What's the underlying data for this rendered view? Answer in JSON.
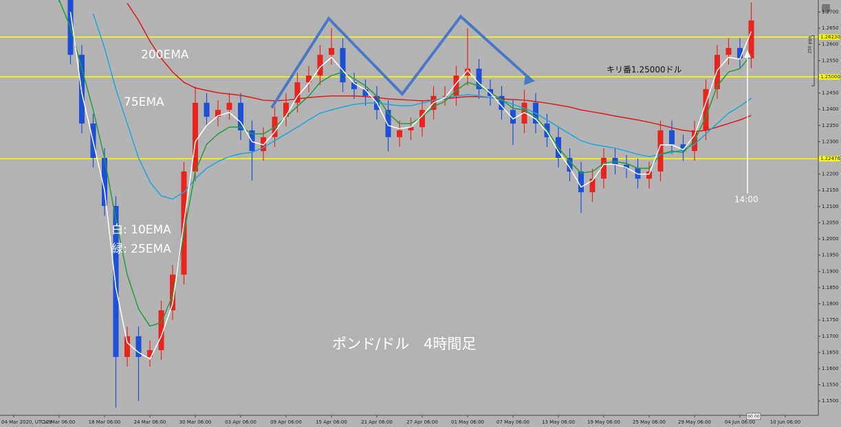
{
  "chart_data": {
    "type": "candlestick",
    "title": "ポンド/ドル　4時間足",
    "annotations": {
      "ema200": "200EMA",
      "ema75": "75EMA",
      "ema10": "白: 10EMA",
      "ema25": "緑: 25EMA",
      "round": "キリ番1.25000ドル",
      "time": "14:00",
      "pips": "250 pips",
      "cursor": "00:00"
    },
    "categories": [
      "04 Mar 2020, UTC+9",
      null,
      null,
      null,
      "12 Mar 06:00",
      null,
      null,
      null,
      "18 Mar 06:00",
      null,
      null,
      null,
      "24 Mar 06:00",
      null,
      null,
      null,
      "30 Mar 06:00",
      null,
      null,
      null,
      "03 Apr 06:00",
      null,
      null,
      null,
      "09 Apr 06:00",
      null,
      null,
      null,
      "15 Apr 06:00",
      null,
      null,
      null,
      "21 Apr 06:00",
      null,
      null,
      null,
      "27 Apr 06:00",
      null,
      null,
      null,
      "01 May 06:00",
      null,
      null,
      null,
      "07 May 06:00",
      null,
      null,
      null,
      "13 May 06:00",
      null,
      null,
      null,
      "19 May 06:00",
      null,
      null,
      null,
      "25 May 06:00",
      null,
      null,
      null,
      "29 May 06:00",
      null,
      null,
      null,
      "04 Jun 06:00",
      null,
      null,
      null,
      "10 Jun 06:00",
      null,
      null,
      null
    ],
    "open": [
      null,
      null,
      null,
      null,
      1.29,
      1.276,
      1.2568,
      1.2356,
      1.225,
      1.2102,
      1.1636,
      1.17,
      1.1636,
      1.1657,
      1.178,
      1.189,
      1.2208,
      1.242,
      1.2377,
      1.2398,
      1.242,
      1.2335,
      1.2271,
      1.2314,
      1.2377,
      1.242,
      1.2483,
      1.2504,
      1.2568,
      1.2589,
      1.2483,
      1.2462,
      1.2441,
      1.2398,
      1.2314,
      1.2335,
      1.2345,
      1.2398,
      1.2441,
      1.2441,
      1.2504,
      1.2525,
      1.2462,
      1.2441,
      1.2398,
      1.2356,
      1.242,
      1.2356,
      1.2314,
      1.225,
      1.2208,
      1.2144,
      1.2186,
      1.225,
      1.2229,
      1.2218,
      1.2186,
      1.2208,
      1.2335,
      1.2292,
      1.2271,
      1.2335,
      1.2462,
      1.2568,
      1.2589,
      1.2557,
      null,
      null,
      null,
      null,
      null,
      null
    ],
    "high": [
      null,
      null,
      null,
      null,
      1.293,
      1.279,
      1.2598,
      1.2386,
      1.228,
      1.2132,
      1.173,
      1.173,
      1.1687,
      1.181,
      1.192,
      1.2238,
      1.247,
      1.245,
      1.2428,
      1.245,
      1.245,
      1.2365,
      1.2344,
      1.2407,
      1.245,
      1.2513,
      1.2534,
      1.2598,
      1.265,
      1.2619,
      1.2513,
      1.2492,
      1.2471,
      1.2428,
      1.2365,
      1.2375,
      1.2428,
      1.2471,
      1.2471,
      1.2534,
      1.265,
      1.2555,
      1.2492,
      1.2471,
      1.2428,
      1.246,
      1.245,
      1.2386,
      1.2344,
      1.228,
      1.2238,
      1.2216,
      1.228,
      1.228,
      1.2259,
      1.2248,
      1.2238,
      1.2365,
      1.2365,
      1.2322,
      1.2365,
      1.2492,
      1.2598,
      1.2619,
      1.2619,
      1.273,
      null,
      null,
      null,
      null,
      null,
      null
    ],
    "low": [
      null,
      null,
      null,
      null,
      1.273,
      1.2538,
      1.2326,
      1.222,
      1.2072,
      1.148,
      1.1606,
      1.15,
      1.1606,
      1.1627,
      1.175,
      1.186,
      1.2178,
      1.2347,
      1.2347,
      1.2368,
      1.2305,
      1.218,
      1.2241,
      1.2284,
      1.2347,
      1.239,
      1.2453,
      1.2474,
      1.2538,
      1.2453,
      1.2432,
      1.2411,
      1.2368,
      1.227,
      1.2284,
      1.2305,
      1.2315,
      1.2368,
      1.2411,
      1.2411,
      1.2474,
      1.2432,
      1.2411,
      1.2368,
      1.229,
      1.2326,
      1.2326,
      1.2284,
      1.222,
      1.2178,
      1.208,
      1.2114,
      1.2156,
      1.2199,
      1.2188,
      1.2156,
      1.2156,
      1.2178,
      1.2262,
      1.2241,
      1.2241,
      1.2305,
      1.2432,
      1.2538,
      1.2527,
      1.2527,
      null,
      null,
      null,
      null,
      null,
      null
    ],
    "close": [
      null,
      null,
      null,
      null,
      1.276,
      1.2568,
      1.2356,
      1.225,
      1.2102,
      1.1636,
      1.17,
      1.1636,
      1.1657,
      1.178,
      1.189,
      1.2208,
      1.242,
      1.2377,
      1.2398,
      1.242,
      1.2335,
      1.2271,
      1.2314,
      1.2377,
      1.242,
      1.2483,
      1.2504,
      1.2568,
      1.2589,
      1.2483,
      1.2462,
      1.2441,
      1.2398,
      1.2314,
      1.2335,
      1.2345,
      1.2398,
      1.2441,
      1.2441,
      1.2504,
      1.2525,
      1.2462,
      1.2441,
      1.2398,
      1.2356,
      1.242,
      1.2356,
      1.2314,
      1.225,
      1.2208,
      1.2144,
      1.2186,
      1.225,
      1.2229,
      1.2218,
      1.2186,
      1.2208,
      1.2335,
      1.2292,
      1.2271,
      1.2335,
      1.2462,
      1.2568,
      1.2589,
      1.2557,
      1.2674,
      null,
      null,
      null,
      null,
      null,
      null
    ],
    "up_color": "#e8241c",
    "down_color": "#1d4fd8",
    "series": [
      {
        "name": "200EMA",
        "color": "#e01818",
        "values": [
          null,
          null,
          null,
          null,
          null,
          null,
          null,
          null,
          null,
          null,
          1.2727,
          1.2674,
          1.261,
          1.2557,
          1.2515,
          1.2483,
          1.2466,
          1.2458,
          1.2451,
          1.2447,
          1.2443,
          1.2436,
          1.2428,
          1.2426,
          1.2428,
          1.2432,
          1.2436,
          1.2439,
          1.2441,
          1.2441,
          1.2441,
          1.2439,
          1.2436,
          1.2432,
          1.243,
          1.2428,
          1.2426,
          1.2428,
          1.2432,
          1.2436,
          1.2439,
          1.2439,
          1.2436,
          1.2432,
          1.243,
          1.2428,
          1.2424,
          1.2419,
          1.2413,
          1.2407,
          1.2398,
          1.2392,
          1.2386,
          1.2379,
          1.2373,
          1.2367,
          1.236,
          1.2352,
          1.2343,
          1.2335,
          1.2331,
          1.2335,
          1.2345,
          1.2356,
          1.2367,
          1.2381,
          null,
          null,
          null,
          null,
          null,
          null
        ]
      },
      {
        "name": "75EMA",
        "color": "#1aa6e0",
        "values": [
          null,
          null,
          null,
          null,
          null,
          null,
          null,
          1.2695,
          1.2589,
          1.2462,
          1.2356,
          1.225,
          1.2176,
          1.2133,
          1.2123,
          1.2144,
          1.2186,
          1.2218,
          1.2239,
          1.2254,
          1.2263,
          1.2267,
          1.2282,
          1.2303,
          1.2324,
          1.2345,
          1.2367,
          1.2388,
          1.2398,
          1.2407,
          1.2415,
          1.2419,
          1.2419,
          1.2415,
          1.2411,
          1.2411,
          1.2419,
          1.2428,
          1.2434,
          1.2441,
          1.2445,
          1.2441,
          1.2436,
          1.2428,
          1.2415,
          1.2403,
          1.2388,
          1.2367,
          1.2345,
          1.2324,
          1.2303,
          1.2292,
          1.2286,
          1.228,
          1.2271,
          1.2261,
          1.2254,
          1.2261,
          1.2267,
          1.2275,
          1.2292,
          1.2324,
          1.2356,
          1.2388,
          1.2409,
          1.2434,
          null,
          null,
          null,
          null,
          null,
          null
        ]
      },
      {
        "name": "25EMA",
        "color": "#1f9e3a",
        "values": [
          null,
          null,
          null,
          null,
          1.2737,
          1.2653,
          1.2525,
          1.2398,
          1.225,
          1.2059,
          1.189,
          1.1784,
          1.1731,
          1.1742,
          1.1826,
          1.2017,
          1.2208,
          1.2292,
          1.2324,
          1.2345,
          1.2345,
          1.2324,
          1.2324,
          1.2345,
          1.2377,
          1.2409,
          1.2441,
          1.2483,
          1.2504,
          1.2515,
          1.2494,
          1.2472,
          1.2441,
          1.2388,
          1.2356,
          1.2356,
          1.2377,
          1.2409,
          1.2424,
          1.2458,
          1.2483,
          1.2472,
          1.2451,
          1.243,
          1.2403,
          1.2398,
          1.2377,
          1.2335,
          1.2282,
          1.2239,
          1.2203,
          1.2208,
          1.2233,
          1.2239,
          1.2233,
          1.2218,
          1.2218,
          1.2261,
          1.2271,
          1.2267,
          1.2303,
          1.2377,
          1.2472,
          1.2515,
          1.2525,
          1.2568,
          null,
          null,
          null,
          null,
          null,
          null
        ]
      },
      {
        "name": "10EMA",
        "color": "#ffffff",
        "values": [
          null,
          null,
          null,
          null,
          null,
          1.27,
          1.245,
          1.23,
          1.215,
          1.185,
          1.168,
          1.165,
          1.163,
          1.17,
          1.18,
          1.205,
          1.23,
          1.235,
          1.238,
          1.239,
          1.236,
          1.23,
          1.229,
          1.233,
          1.238,
          1.244,
          1.248,
          1.253,
          1.256,
          1.252,
          1.248,
          1.246,
          1.242,
          1.235,
          1.234,
          1.2345,
          1.238,
          1.242,
          1.2435,
          1.248,
          1.252,
          1.248,
          1.245,
          1.241,
          1.237,
          1.239,
          1.237,
          1.233,
          1.227,
          1.222,
          1.216,
          1.218,
          1.223,
          1.223,
          1.222,
          1.22,
          1.22,
          1.229,
          1.229,
          1.2275,
          1.232,
          1.242,
          1.252,
          1.256,
          1.2555,
          1.264,
          null,
          null,
          null,
          null,
          null,
          null
        ]
      }
    ],
    "levels": [
      {
        "value": 1.2623,
        "label": "1.26230"
      },
      {
        "value": 1.25,
        "label": "1.25000"
      },
      {
        "value": 1.22476,
        "label": "1.22476"
      }
    ],
    "level_color": "#ffff00",
    "ylim": [
      1.1456,
      1.2737
    ],
    "yticks": [
      {
        "value": 1.15,
        "label": "1.1500"
      },
      {
        "value": 1.155,
        "label": "1.1550"
      },
      {
        "value": 1.16,
        "label": "1.1600"
      },
      {
        "value": 1.165,
        "label": "1.1650"
      },
      {
        "value": 1.17,
        "label": "1.1700"
      },
      {
        "value": 1.175,
        "label": "1.1750"
      },
      {
        "value": 1.18,
        "label": "1.1800"
      },
      {
        "value": 1.185,
        "label": "1.1850"
      },
      {
        "value": 1.19,
        "label": "1.1900"
      },
      {
        "value": 1.195,
        "label": "1.1950"
      },
      {
        "value": 1.2,
        "label": "1.2000"
      },
      {
        "value": 1.205,
        "label": "1.2050"
      },
      {
        "value": 1.21,
        "label": "1.2100"
      },
      {
        "value": 1.215,
        "label": "1.2150"
      },
      {
        "value": 1.22,
        "label": "1.2200"
      },
      {
        "value": 1.225,
        "label": "1.2250"
      },
      {
        "value": 1.23,
        "label": "1.2300"
      },
      {
        "value": 1.235,
        "label": "1.2350"
      },
      {
        "value": 1.24,
        "label": "1.2400"
      },
      {
        "value": 1.245,
        "label": "1.2450"
      },
      {
        "value": 1.25,
        "label": "1.2500"
      },
      {
        "value": 1.255,
        "label": "1.2550"
      },
      {
        "value": 1.26,
        "label": "1.2600"
      },
      {
        "value": 1.265,
        "label": "1.2650"
      },
      {
        "value": 1.27,
        "label": "1.2700"
      }
    ],
    "grid": false
  }
}
